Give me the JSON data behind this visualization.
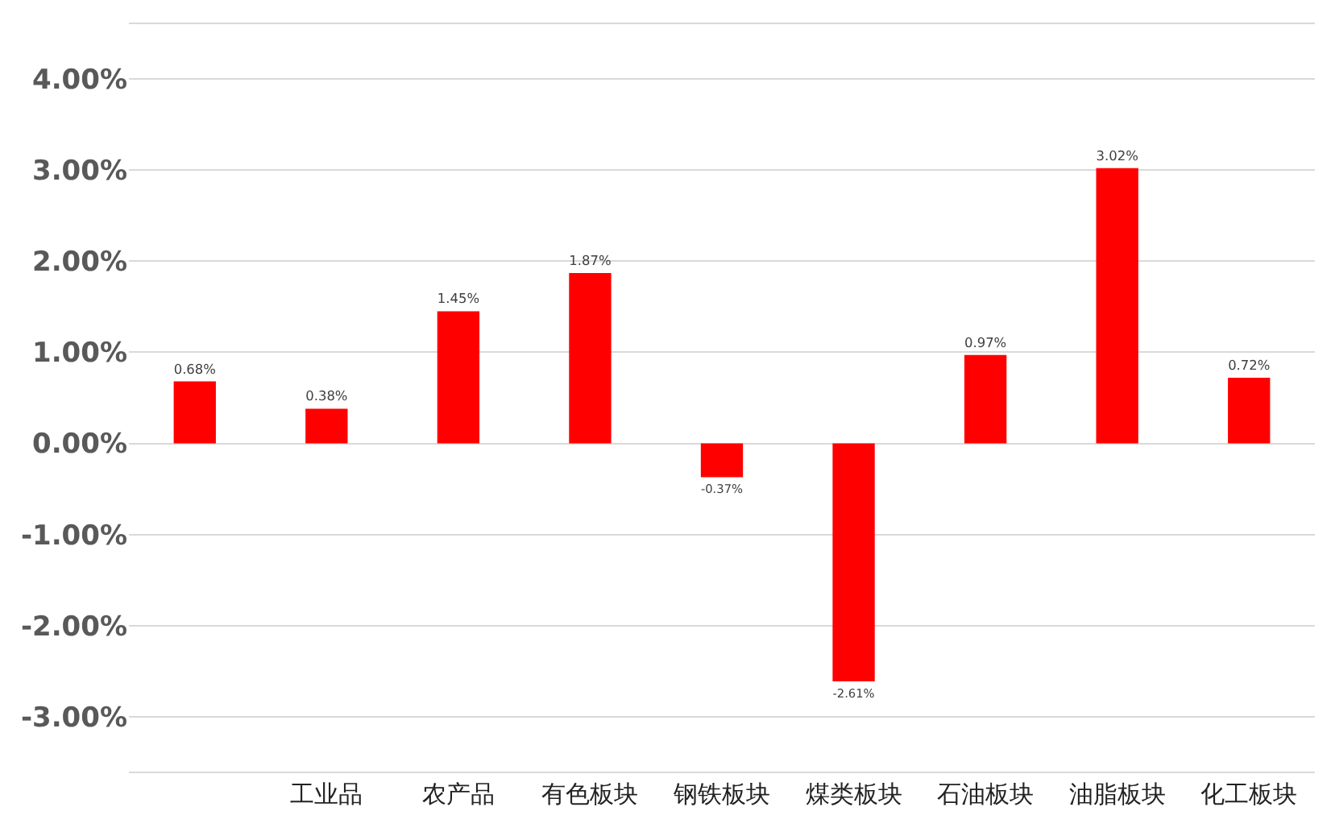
{
  "chart_data": {
    "type": "bar",
    "categories": [
      null,
      "工业品",
      "农产品",
      "有色板块",
      "钢铁板块",
      "煤类板块",
      "石油板块",
      "油脂板块",
      "化工板块"
    ],
    "values": [
      0.68,
      0.38,
      1.45,
      1.87,
      -0.37,
      -2.61,
      0.97,
      3.02,
      0.72
    ],
    "value_labels": [
      "0.68%",
      "0.38%",
      "1.45%",
      "1.87%",
      "-0.37%",
      "-2.61%",
      "0.97%",
      "3.02%",
      "0.72%"
    ],
    "color": "#ff0000",
    "ylim": [
      -3.6,
      4.6
    ],
    "yticks": [
      {
        "value": -3,
        "label": "-3.00%"
      },
      {
        "value": -2,
        "label": "-2.00%"
      },
      {
        "value": -1,
        "label": "-1.00%"
      },
      {
        "value": 0,
        "label": "0.00%"
      },
      {
        "value": 1,
        "label": "1.00%"
      },
      {
        "value": 2,
        "label": "2.00%"
      },
      {
        "value": 3,
        "label": "3.00%"
      },
      {
        "value": 4,
        "label": "4.00%"
      }
    ],
    "grid": "y",
    "legend": false
  }
}
